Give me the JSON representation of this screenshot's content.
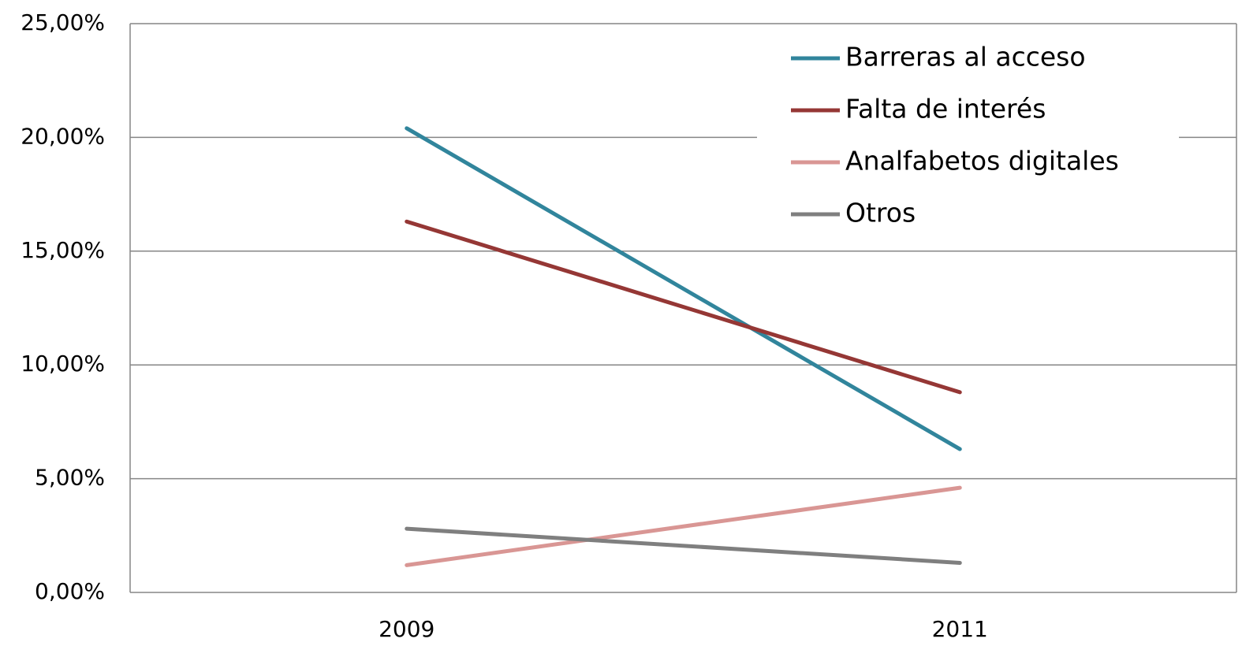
{
  "chart_data": {
    "type": "line",
    "categories": [
      "2009",
      "2011"
    ],
    "series": [
      {
        "name": "Barreras al acceso",
        "color": "#31859c",
        "values": [
          20.4,
          6.3
        ]
      },
      {
        "name": "Falta de interés",
        "color": "#953735",
        "values": [
          16.3,
          8.8
        ]
      },
      {
        "name": "Analfabetos digitales",
        "color": "#d99694",
        "values": [
          1.2,
          4.6
        ]
      },
      {
        "name": "Otros",
        "color": "#7f7f7f",
        "values": [
          2.8,
          1.3
        ]
      }
    ],
    "ylim": [
      0,
      25
    ],
    "yticks": [
      {
        "value": 0,
        "label": "0,00%"
      },
      {
        "value": 5,
        "label": "5,00%"
      },
      {
        "value": 10,
        "label": "10,00%"
      },
      {
        "value": 15,
        "label": "15,00%"
      },
      {
        "value": 20,
        "label": "20,00%"
      },
      {
        "value": 25,
        "label": "25,00%"
      }
    ],
    "grid": true,
    "legend": "upper right"
  }
}
